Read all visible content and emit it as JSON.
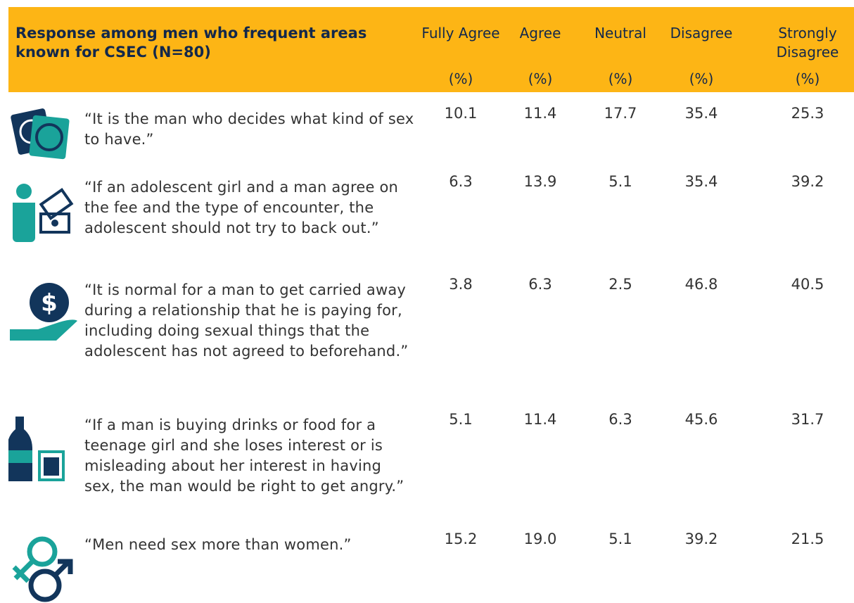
{
  "table": {
    "title": "Response among men who frequent areas known for CSEC (N=80)",
    "columns": [
      {
        "label": "Fully Agree",
        "unit": "(%)"
      },
      {
        "label": "Agree",
        "unit": "(%)"
      },
      {
        "label": "Neutral",
        "unit": "(%)"
      },
      {
        "label": "Disagree",
        "unit": "(%)"
      },
      {
        "label": "Strongly Disagree",
        "unit": "(%)"
      }
    ],
    "rows": [
      {
        "statement": "“It is the man who decides what kind of sex to have.”",
        "values": [
          "10.1",
          "11.4",
          "17.7",
          "35.4",
          "25.3"
        ]
      },
      {
        "statement": "“If an adolescent girl and a man agree on the fee and the type of encounter, the adolescent should not try to back out.”",
        "values": [
          "6.3",
          "13.9",
          "5.1",
          "35.4",
          "39.2"
        ]
      },
      {
        "statement": "“It is normal for a man to get carried away during a relationship that he is paying for, including doing sexual things that the adolescent has not agreed to beforehand.”",
        "values": [
          "3.8",
          "6.3",
          "2.5",
          "46.8",
          "40.5"
        ]
      },
      {
        "statement": "“If a man is buying drinks or food for a teenage girl and she loses interest or is misleading about her interest in having sex, the man would be right to get angry.”",
        "values": [
          "5.1",
          "11.4",
          "6.3",
          "45.6",
          "31.7"
        ]
      },
      {
        "statement": "“Men need sex more than women.”",
        "values": [
          "15.2",
          "19.0",
          "5.1",
          "39.2",
          "21.5"
        ]
      }
    ]
  }
}
